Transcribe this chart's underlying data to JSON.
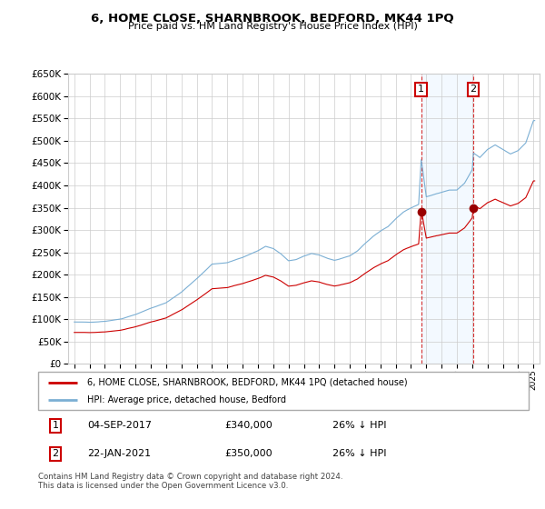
{
  "title": "6, HOME CLOSE, SHARNBROOK, BEDFORD, MK44 1PQ",
  "subtitle": "Price paid vs. HM Land Registry's House Price Index (HPI)",
  "legend_line1": "6, HOME CLOSE, SHARNBROOK, BEDFORD, MK44 1PQ (detached house)",
  "legend_line2": "HPI: Average price, detached house, Bedford",
  "annotation1_label": "1",
  "annotation1_date": "04-SEP-2017",
  "annotation1_price": "£340,000",
  "annotation1_hpi": "26% ↓ HPI",
  "annotation1_year": 2017.67,
  "annotation1_val": 340000,
  "annotation2_label": "2",
  "annotation2_date": "22-JAN-2021",
  "annotation2_price": "£350,000",
  "annotation2_hpi": "26% ↓ HPI",
  "annotation2_year": 2021.06,
  "annotation2_val": 350000,
  "footer": "Contains HM Land Registry data © Crown copyright and database right 2024.\nThis data is licensed under the Open Government Licence v3.0.",
  "hpi_color": "#7bafd4",
  "price_color": "#cc0000",
  "dark_red": "#990000",
  "background_color": "#ffffff",
  "grid_color": "#cccccc",
  "box_color": "#cc0000",
  "shade_color": "#ddeeff",
  "ylim_min": 0,
  "ylim_max": 650000,
  "xlim_min": 1994.6,
  "xlim_max": 2025.4
}
